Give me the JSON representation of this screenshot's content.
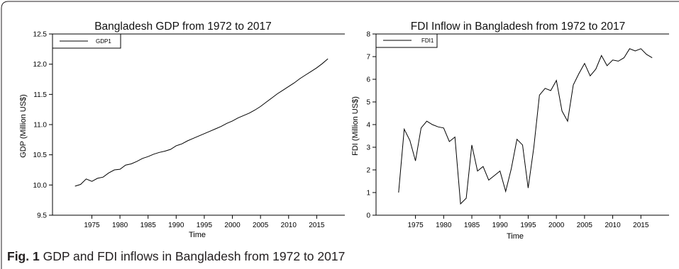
{
  "caption": {
    "label": "Fig. 1",
    "text": "GDP and FDI inflows in Bangladesh from 1972 to 2017"
  },
  "colors": {
    "line": "#000000",
    "frame": "#231f20",
    "caption_text": "#231f20"
  },
  "chart_data": [
    {
      "type": "line",
      "title": "Bangladesh GDP from 1972 to 2017",
      "xlabel": "Time",
      "ylabel": "GDP (Million US$)",
      "xlim": [
        1968,
        2020
      ],
      "ylim": [
        9.5,
        12.5
      ],
      "xticks": [
        "1975",
        "1980",
        "1985",
        "1990",
        "1995",
        "2000",
        "2005",
        "2010",
        "2015"
      ],
      "yticks": [
        "9.5",
        "10.0",
        "10.5",
        "11.0",
        "11.5",
        "12.0",
        "12.5"
      ],
      "grid": false,
      "legend": "top-left",
      "series": [
        {
          "name": "GDP1",
          "x": [
            1972,
            1973,
            1974,
            1975,
            1976,
            1977,
            1978,
            1979,
            1980,
            1981,
            1982,
            1983,
            1984,
            1985,
            1986,
            1987,
            1988,
            1989,
            1990,
            1991,
            1992,
            1993,
            1994,
            1995,
            1996,
            1997,
            1998,
            1999,
            2000,
            2001,
            2002,
            2003,
            2004,
            2005,
            2006,
            2007,
            2008,
            2009,
            2010,
            2011,
            2012,
            2013,
            2014,
            2015,
            2016,
            2017
          ],
          "values": [
            9.98,
            10.01,
            10.1,
            10.06,
            10.11,
            10.13,
            10.2,
            10.25,
            10.26,
            10.33,
            10.35,
            10.39,
            10.44,
            10.47,
            10.51,
            10.54,
            10.56,
            10.59,
            10.65,
            10.68,
            10.73,
            10.77,
            10.81,
            10.85,
            10.89,
            10.93,
            10.97,
            11.02,
            11.06,
            11.11,
            11.15,
            11.19,
            11.24,
            11.3,
            11.37,
            11.44,
            11.51,
            11.57,
            11.63,
            11.69,
            11.76,
            11.82,
            11.88,
            11.94,
            12.01,
            12.09
          ]
        }
      ]
    },
    {
      "type": "line",
      "title": "FDI Inflow in Bangladesh from 1972 to 2017",
      "xlabel": "Time",
      "ylabel": "FDI (Million US$)",
      "xlim": [
        1968,
        2020
      ],
      "ylim": [
        0,
        8
      ],
      "xticks": [
        "1975",
        "1980",
        "1985",
        "1990",
        "1995",
        "2000",
        "2005",
        "2010",
        "2015"
      ],
      "yticks": [
        "0",
        "1",
        "2",
        "3",
        "4",
        "5",
        "6",
        "7",
        "8"
      ],
      "grid": false,
      "legend": "top-left",
      "series": [
        {
          "name": "FDI1",
          "x": [
            1972,
            1973,
            1974,
            1975,
            1976,
            1977,
            1978,
            1979,
            1980,
            1981,
            1982,
            1983,
            1984,
            1985,
            1986,
            1987,
            1988,
            1989,
            1990,
            1991,
            1992,
            1993,
            1994,
            1995,
            1996,
            1997,
            1998,
            1999,
            2000,
            2001,
            2002,
            2003,
            2004,
            2005,
            2006,
            2007,
            2008,
            2009,
            2010,
            2011,
            2012,
            2013,
            2014,
            2015,
            2016,
            2017
          ],
          "values": [
            1.0,
            3.8,
            3.3,
            2.4,
            3.85,
            4.15,
            4.0,
            3.9,
            3.85,
            3.25,
            3.45,
            0.5,
            0.75,
            3.1,
            1.95,
            2.15,
            1.55,
            1.75,
            1.95,
            1.05,
            2.05,
            3.35,
            3.1,
            1.2,
            3.0,
            5.3,
            5.6,
            5.5,
            5.95,
            4.6,
            4.15,
            5.75,
            6.25,
            6.7,
            6.15,
            6.45,
            7.05,
            6.6,
            6.85,
            6.8,
            6.95,
            7.35,
            7.25,
            7.35,
            7.1,
            6.95
          ]
        }
      ]
    }
  ]
}
